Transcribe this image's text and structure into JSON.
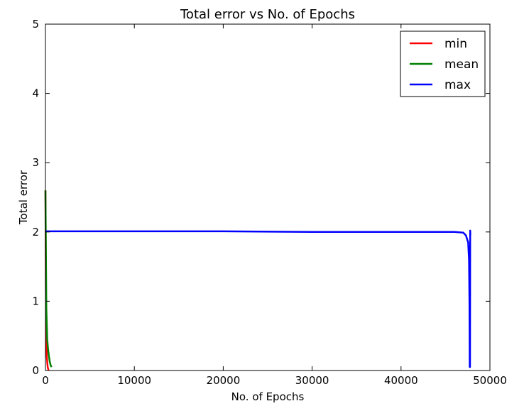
{
  "chart_data": {
    "type": "line",
    "title": "Total error vs No. of Epochs",
    "xlabel": "No. of Epochs",
    "ylabel": "Total error",
    "xlim": [
      0,
      50000
    ],
    "ylim": [
      0,
      5
    ],
    "xticks": [
      0,
      10000,
      20000,
      30000,
      40000,
      50000
    ],
    "yticks": [
      0,
      1,
      2,
      3,
      4,
      5
    ],
    "grid": false,
    "legend_position": "top-right",
    "series": [
      {
        "name": "min",
        "color": "#ff0000",
        "points": [
          [
            0,
            2.6
          ],
          [
            50,
            1.2
          ],
          [
            100,
            0.5
          ],
          [
            150,
            0.2
          ],
          [
            250,
            0.05
          ],
          [
            350,
            0.0
          ]
        ]
      },
      {
        "name": "mean",
        "color": "#008000",
        "points": [
          [
            0,
            2.6
          ],
          [
            60,
            1.6
          ],
          [
            100,
            0.9
          ],
          [
            200,
            0.45
          ],
          [
            300,
            0.3
          ],
          [
            400,
            0.2
          ],
          [
            500,
            0.12
          ],
          [
            600,
            0.07
          ],
          [
            700,
            0.05
          ]
        ]
      },
      {
        "name": "max",
        "color": "#0000ff",
        "points": [
          [
            0,
            2.01
          ],
          [
            1000,
            2.01
          ],
          [
            10000,
            2.01
          ],
          [
            20000,
            2.01
          ],
          [
            30000,
            2.0
          ],
          [
            40000,
            2.0
          ],
          [
            46000,
            2.0
          ],
          [
            47000,
            1.99
          ],
          [
            47300,
            1.95
          ],
          [
            47550,
            1.85
          ],
          [
            47650,
            1.6
          ],
          [
            47700,
            1.0
          ],
          [
            47720,
            0.5
          ],
          [
            47730,
            0.05
          ],
          [
            47760,
            0.05
          ],
          [
            47780,
            2.02
          ],
          [
            47800,
            1.95
          ]
        ]
      }
    ]
  }
}
